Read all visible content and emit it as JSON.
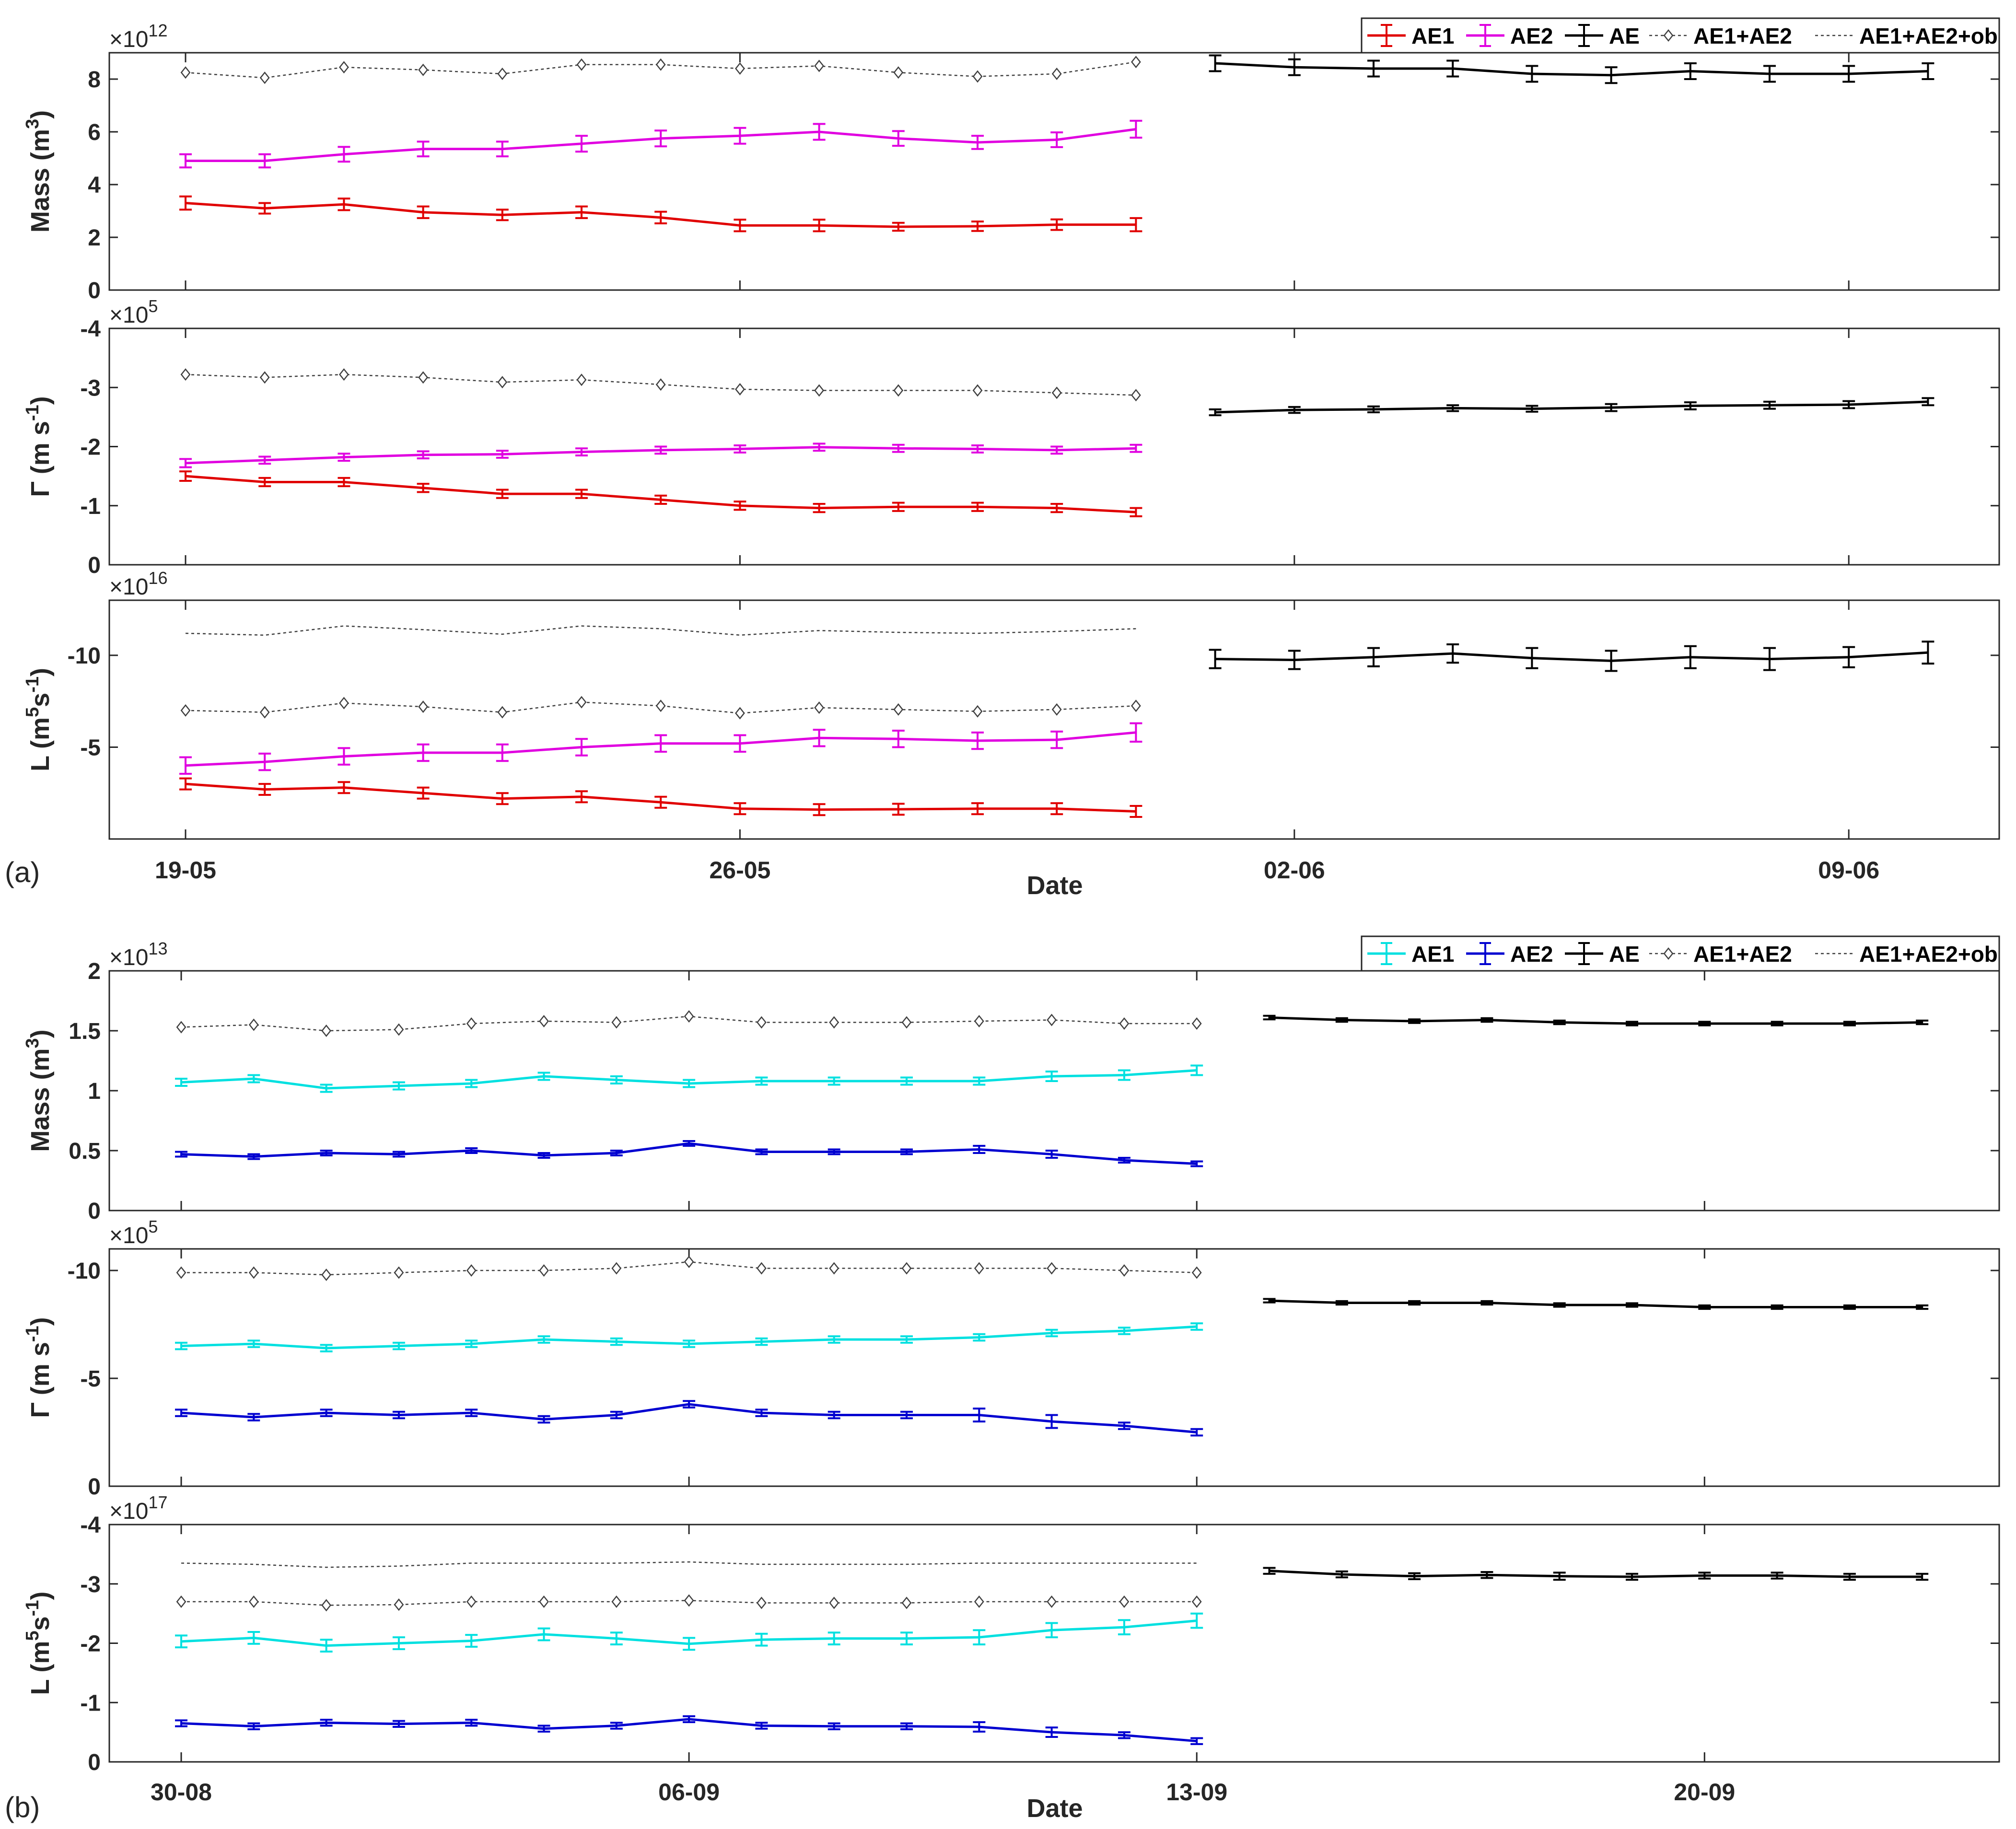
{
  "figure": {
    "panel_a_label": "(a)",
    "panel_b_label": "(b)"
  },
  "chart_data": [
    {
      "type": "line",
      "panel": "(a)",
      "xlabel": "Date",
      "x_tick_labels": [
        "19-05",
        "26-05",
        "02-06",
        "09-06"
      ],
      "x_tick_days": [
        0,
        7,
        14,
        21
      ],
      "legend": [
        "AE1",
        "AE2",
        "AE",
        "AE1+AE2",
        "AE1+AE2+ob"
      ],
      "legend_placement": "top-right",
      "colors": {
        "AE1": "#e00000",
        "AE2": "#e000e0",
        "AE": "#000000",
        "sum": "#404040",
        "ob": "#404040"
      },
      "x": {
        "AE1": [
          "19-05",
          "20-05",
          "21-05",
          "22-05",
          "23-05",
          "24-05",
          "25-05",
          "26-05",
          "27-05",
          "28-05",
          "29-05",
          "30-05",
          "31-05"
        ],
        "AE": [
          "01-06",
          "02-06",
          "03-06",
          "04-06",
          "05-06",
          "06-06",
          "07-06",
          "08-06",
          "09-06",
          "10-06"
        ]
      },
      "subplots": [
        {
          "ylabel": "Mass (m³)",
          "ylabel_main": "Mass (m",
          "ylabel_sup": "3",
          "ylabel_tail": ")",
          "exponent_base": "×10",
          "exponent_power": "12",
          "ylim": [
            0,
            9
          ],
          "yticks": [
            0,
            2,
            4,
            6,
            8
          ],
          "y_tick_labels": [
            "0",
            "2",
            "4",
            "6",
            "8"
          ],
          "reversed": false,
          "AE1": [
            3.3,
            3.1,
            3.25,
            2.95,
            2.85,
            2.95,
            2.75,
            2.45,
            2.45,
            2.4,
            2.42,
            2.48,
            2.48
          ],
          "AE1_err": [
            0.25,
            0.2,
            0.22,
            0.22,
            0.2,
            0.22,
            0.22,
            0.22,
            0.22,
            0.15,
            0.18,
            0.2,
            0.25
          ],
          "AE2": [
            4.9,
            4.9,
            5.15,
            5.35,
            5.35,
            5.55,
            5.75,
            5.85,
            6.0,
            5.75,
            5.6,
            5.7,
            6.1
          ],
          "AE2_err": [
            0.25,
            0.25,
            0.28,
            0.28,
            0.28,
            0.3,
            0.3,
            0.3,
            0.3,
            0.28,
            0.25,
            0.28,
            0.32
          ],
          "AE": [
            8.6,
            8.45,
            8.4,
            8.4,
            8.2,
            8.15,
            8.3,
            8.2,
            8.2,
            8.3
          ],
          "AE_err": [
            0.3,
            0.3,
            0.3,
            0.3,
            0.3,
            0.3,
            0.3,
            0.3,
            0.3,
            0.3
          ],
          "AE1+AE2": [
            8.25,
            8.05,
            8.45,
            8.35,
            8.2,
            8.55,
            8.55,
            8.4,
            8.5,
            8.25,
            8.1,
            8.2,
            8.65
          ],
          "AE1+AE2+ob": null
        },
        {
          "ylabel": "Γ (m s⁻¹)",
          "ylabel_main": "Γ (m s",
          "ylabel_sup": "-1",
          "ylabel_tail": ")",
          "exponent_base": "×10",
          "exponent_power": "5",
          "ylim": [
            0,
            -4
          ],
          "yticks": [
            0,
            -1,
            -2,
            -3,
            -4
          ],
          "y_tick_labels": [
            "0",
            "-1",
            "-2",
            "-3",
            "-4"
          ],
          "reversed": true,
          "AE1": [
            -1.5,
            -1.4,
            -1.4,
            -1.3,
            -1.2,
            -1.2,
            -1.1,
            -1.0,
            -0.96,
            -0.98,
            -0.98,
            -0.96,
            -0.89
          ],
          "AE1_err": [
            0.08,
            0.07,
            0.07,
            0.07,
            0.07,
            0.07,
            0.07,
            0.07,
            0.07,
            0.07,
            0.07,
            0.07,
            0.07
          ],
          "AE2": [
            -1.72,
            -1.77,
            -1.82,
            -1.86,
            -1.87,
            -1.91,
            -1.94,
            -1.96,
            -1.99,
            -1.97,
            -1.96,
            -1.94,
            -1.97
          ],
          "AE2_err": [
            0.07,
            0.06,
            0.06,
            0.06,
            0.06,
            0.06,
            0.06,
            0.06,
            0.06,
            0.06,
            0.06,
            0.06,
            0.06
          ],
          "AE": [
            -2.58,
            -2.62,
            -2.63,
            -2.65,
            -2.64,
            -2.66,
            -2.69,
            -2.7,
            -2.71,
            -2.76
          ],
          "AE_err": [
            0.05,
            0.05,
            0.05,
            0.05,
            0.05,
            0.06,
            0.06,
            0.06,
            0.06,
            0.06
          ],
          "AE1+AE2": [
            -3.22,
            -3.17,
            -3.22,
            -3.17,
            -3.09,
            -3.13,
            -3.05,
            -2.97,
            -2.95,
            -2.95,
            -2.95,
            -2.91,
            -2.87
          ],
          "AE1+AE2+ob": null
        },
        {
          "ylabel": "L (m⁵s⁻¹)",
          "ylabel_main": "L (m",
          "ylabel_sup": "5",
          "ylabel_mid": "s",
          "ylabel_sup2": "-1",
          "ylabel_tail": ")",
          "exponent_base": "×10",
          "exponent_power": "16",
          "ylim": [
            0,
            -13
          ],
          "yticks": [
            -5,
            -10
          ],
          "y_tick_labels": [
            "-5",
            "-10"
          ],
          "reversed": true,
          "AE1": [
            -3.0,
            -2.7,
            -2.8,
            -2.5,
            -2.2,
            -2.3,
            -2.0,
            -1.65,
            -1.6,
            -1.62,
            -1.65,
            -1.65,
            -1.5
          ],
          "AE1_err": [
            0.3,
            0.3,
            0.3,
            0.3,
            0.3,
            0.3,
            0.3,
            0.3,
            0.3,
            0.3,
            0.3,
            0.3,
            0.3
          ],
          "AE2": [
            -4.0,
            -4.2,
            -4.5,
            -4.7,
            -4.7,
            -5.0,
            -5.2,
            -5.2,
            -5.5,
            -5.45,
            -5.35,
            -5.4,
            -5.8
          ],
          "AE2_err": [
            0.45,
            0.45,
            0.45,
            0.45,
            0.45,
            0.45,
            0.45,
            0.45,
            0.45,
            0.45,
            0.45,
            0.45,
            0.5
          ],
          "AE": [
            -9.8,
            -9.75,
            -9.9,
            -10.1,
            -9.85,
            -9.7,
            -9.9,
            -9.8,
            -9.9,
            -10.15
          ],
          "AE_err": [
            0.5,
            0.5,
            0.5,
            0.5,
            0.55,
            0.55,
            0.6,
            0.6,
            0.55,
            0.6
          ],
          "AE1+AE2": [
            -7.0,
            -6.9,
            -7.4,
            -7.2,
            -6.9,
            -7.45,
            -7.25,
            -6.85,
            -7.15,
            -7.05,
            -6.95,
            -7.05,
            -7.25
          ],
          "AE1+AE2+ob": [
            -11.2,
            -11.1,
            -11.6,
            -11.4,
            -11.15,
            -11.6,
            -11.45,
            -11.1,
            -11.35,
            -11.25,
            -11.2,
            -11.3,
            -11.45
          ]
        }
      ]
    },
    {
      "type": "line",
      "panel": "(b)",
      "xlabel": "Date",
      "x_tick_labels": [
        "30-08",
        "06-09",
        "13-09",
        "20-09"
      ],
      "x_tick_days": [
        0,
        7,
        14,
        21
      ],
      "legend": [
        "AE1",
        "AE2",
        "AE",
        "AE1+AE2",
        "AE1+AE2+ob"
      ],
      "legend_placement": "top-right",
      "colors": {
        "AE1": "#00e0e0",
        "AE2": "#0000d0",
        "AE": "#000000",
        "sum": "#404040",
        "ob": "#404040"
      },
      "x": {
        "AE1": [
          "29-08",
          "30-08",
          "31-08",
          "01-09",
          "02-09",
          "03-09",
          "04-09",
          "05-09",
          "06-09",
          "07-09",
          "08-09",
          "09-09",
          "10-09",
          "11-09",
          "12-09"
        ],
        "AE": [
          "13-09",
          "14-09",
          "15-09",
          "16-09",
          "17-09",
          "18-09",
          "19-09",
          "20-09",
          "21-09",
          "22-09"
        ]
      },
      "subplots": [
        {
          "ylabel": "Mass (m³)",
          "ylabel_main": "Mass (m",
          "ylabel_sup": "3",
          "ylabel_tail": ")",
          "exponent_base": "×10",
          "exponent_power": "13",
          "ylim": [
            0,
            2
          ],
          "yticks": [
            0,
            0.5,
            1,
            1.5,
            2
          ],
          "y_tick_labels": [
            "0",
            "0.5",
            "1",
            "1.5",
            "2"
          ],
          "reversed": false,
          "AE1": [
            1.07,
            1.1,
            1.02,
            1.04,
            1.06,
            1.12,
            1.09,
            1.06,
            1.08,
            1.08,
            1.08,
            1.08,
            1.12,
            1.13,
            1.17
          ],
          "AE1_err": [
            0.03,
            0.03,
            0.03,
            0.03,
            0.03,
            0.03,
            0.03,
            0.03,
            0.03,
            0.03,
            0.03,
            0.03,
            0.04,
            0.04,
            0.04
          ],
          "AE2": [
            0.47,
            0.45,
            0.48,
            0.47,
            0.5,
            0.46,
            0.48,
            0.56,
            0.49,
            0.49,
            0.49,
            0.51,
            0.47,
            0.42,
            0.39
          ],
          "AE2_err": [
            0.02,
            0.02,
            0.02,
            0.02,
            0.02,
            0.02,
            0.02,
            0.02,
            0.02,
            0.02,
            0.02,
            0.03,
            0.03,
            0.02,
            0.02
          ],
          "AE": [
            1.61,
            1.59,
            1.58,
            1.59,
            1.57,
            1.56,
            1.56,
            1.56,
            1.56,
            1.57
          ],
          "AE_err": [
            0.015,
            0.015,
            0.015,
            0.015,
            0.015,
            0.015,
            0.015,
            0.015,
            0.015,
            0.015
          ],
          "AE1+AE2": [
            1.53,
            1.55,
            1.5,
            1.51,
            1.56,
            1.58,
            1.57,
            1.62,
            1.57,
            1.57,
            1.57,
            1.58,
            1.59,
            1.56,
            1.56
          ],
          "AE1+AE2+ob": null
        },
        {
          "ylabel": "Γ (m s⁻¹)",
          "ylabel_main": "Γ (m s",
          "ylabel_sup": "-1",
          "ylabel_tail": ")",
          "exponent_base": "×10",
          "exponent_power": "5",
          "ylim": [
            0,
            -11
          ],
          "yticks": [
            0,
            -5,
            -10
          ],
          "y_tick_labels": [
            "0",
            "-5",
            "-10"
          ],
          "reversed": true,
          "AE1": [
            -6.5,
            -6.6,
            -6.4,
            -6.5,
            -6.6,
            -6.8,
            -6.7,
            -6.6,
            -6.7,
            -6.8,
            -6.8,
            -6.9,
            -7.1,
            -7.2,
            -7.4
          ],
          "AE1_err": [
            0.15,
            0.15,
            0.15,
            0.15,
            0.15,
            0.15,
            0.15,
            0.15,
            0.15,
            0.15,
            0.15,
            0.15,
            0.15,
            0.15,
            0.15
          ],
          "AE2": [
            -3.4,
            -3.2,
            -3.4,
            -3.3,
            -3.4,
            -3.1,
            -3.3,
            -3.8,
            -3.4,
            -3.3,
            -3.3,
            -3.3,
            -3.0,
            -2.8,
            -2.5
          ],
          "AE2_err": [
            0.15,
            0.15,
            0.15,
            0.15,
            0.15,
            0.15,
            0.15,
            0.15,
            0.15,
            0.15,
            0.15,
            0.3,
            0.3,
            0.15,
            0.15
          ],
          "AE": [
            -8.6,
            -8.5,
            -8.5,
            -8.5,
            -8.4,
            -8.4,
            -8.3,
            -8.3,
            -8.3,
            -8.3
          ],
          "AE_err": [
            0.08,
            0.08,
            0.08,
            0.08,
            0.08,
            0.08,
            0.08,
            0.08,
            0.08,
            0.08
          ],
          "AE1+AE2": [
            -9.9,
            -9.9,
            -9.8,
            -9.9,
            -10.0,
            -10.0,
            -10.1,
            -10.4,
            -10.1,
            -10.1,
            -10.1,
            -10.1,
            -10.1,
            -10.0,
            -9.9
          ],
          "AE1+AE2+ob": null
        },
        {
          "ylabel": "L (m⁵s⁻¹)",
          "ylabel_main": "L (m",
          "ylabel_sup": "5",
          "ylabel_mid": "s",
          "ylabel_sup2": "-1",
          "ylabel_tail": ")",
          "exponent_base": "×10",
          "exponent_power": "17",
          "ylim": [
            0,
            -4
          ],
          "yticks": [
            0,
            -1,
            -2,
            -3,
            -4
          ],
          "y_tick_labels": [
            "0",
            "-1",
            "-2",
            "-3",
            "-4"
          ],
          "reversed": true,
          "AE1": [
            -2.03,
            -2.09,
            -1.96,
            -2.0,
            -2.04,
            -2.15,
            -2.08,
            -1.99,
            -2.06,
            -2.08,
            -2.08,
            -2.1,
            -2.22,
            -2.27,
            -2.38
          ],
          "AE1_err": [
            0.1,
            0.1,
            0.1,
            0.1,
            0.1,
            0.1,
            0.1,
            0.1,
            0.1,
            0.1,
            0.1,
            0.12,
            0.12,
            0.12,
            0.12
          ],
          "AE2": [
            -0.65,
            -0.6,
            -0.66,
            -0.64,
            -0.66,
            -0.56,
            -0.61,
            -0.72,
            -0.61,
            -0.6,
            -0.6,
            -0.59,
            -0.5,
            -0.45,
            -0.35
          ],
          "AE2_err": [
            0.05,
            0.05,
            0.05,
            0.05,
            0.05,
            0.05,
            0.05,
            0.05,
            0.05,
            0.05,
            0.05,
            0.08,
            0.08,
            0.05,
            0.05
          ],
          "AE": [
            -3.22,
            -3.16,
            -3.13,
            -3.15,
            -3.13,
            -3.12,
            -3.14,
            -3.14,
            -3.12,
            -3.12
          ],
          "AE_err": [
            0.05,
            0.05,
            0.05,
            0.05,
            0.06,
            0.05,
            0.05,
            0.05,
            0.05,
            0.05
          ],
          "AE1+AE2": [
            -2.7,
            -2.7,
            -2.64,
            -2.65,
            -2.7,
            -2.7,
            -2.7,
            -2.72,
            -2.68,
            -2.68,
            -2.68,
            -2.7,
            -2.7,
            -2.7,
            -2.7
          ],
          "AE1+AE2+ob": [
            -3.35,
            -3.33,
            -3.28,
            -3.3,
            -3.35,
            -3.35,
            -3.35,
            -3.37,
            -3.33,
            -3.33,
            -3.33,
            -3.35,
            -3.35,
            -3.35,
            -3.35
          ]
        }
      ]
    }
  ]
}
